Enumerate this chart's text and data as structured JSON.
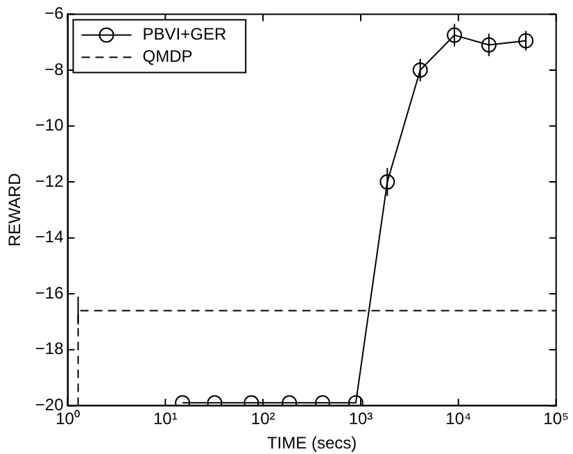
{
  "chart_data": {
    "type": "line",
    "xlabel": "TIME (secs)",
    "ylabel": "REWARD",
    "log": "x",
    "grid": false,
    "legend": "top left",
    "xlim": [
      1,
      100000
    ],
    "xticks": [
      {
        "value": 1,
        "label": "10⁰"
      },
      {
        "value": 10,
        "label": "10¹"
      },
      {
        "value": 100,
        "label": "10²"
      },
      {
        "value": 1000,
        "label": "10³"
      },
      {
        "value": 10000,
        "label": "10⁴"
      },
      {
        "value": 100000,
        "label": "10⁵"
      }
    ],
    "ylim": [
      -20,
      -6
    ],
    "yticks": [
      -20,
      -18,
      -16,
      -14,
      -12,
      -10,
      -8,
      -6
    ],
    "series": [
      {
        "name": "PBVI+GER",
        "color": "#000000",
        "marker": "circle",
        "line_style": "solid",
        "x": [
          15,
          32,
          76,
          186,
          407,
          890,
          1870,
          4060,
          9100,
          20500,
          49000
        ],
        "values": [
          -19.9,
          -19.9,
          -19.9,
          -19.9,
          -19.9,
          -19.9,
          -12.0,
          -8.0,
          -6.75,
          -7.1,
          -6.95
        ],
        "errors": [
          null,
          null,
          null,
          null,
          null,
          null,
          0.5,
          0.4,
          0.4,
          0.4,
          0.35
        ]
      },
      {
        "name": "QMDP",
        "color": "#000000",
        "marker": "none",
        "line_style": "dashed",
        "x": [
          1.28,
          1.28,
          100000
        ],
        "values": [
          -20,
          -16.6,
          -16.6
        ],
        "errors": [
          null,
          0.5,
          null
        ]
      }
    ]
  }
}
